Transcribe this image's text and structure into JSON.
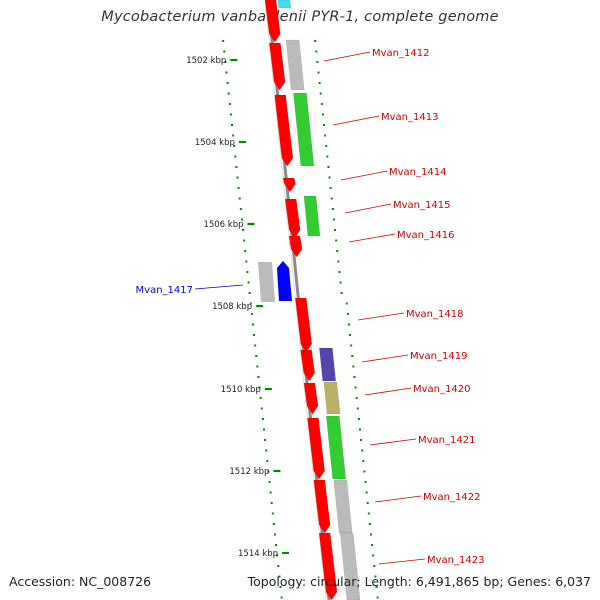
{
  "title": "Mycobacterium vanbaalenii PYR-1, complete genome",
  "accession": "Accession: NC_008726",
  "summary": "Topology: circular; Length: 6,491,865 bp; Genes: 6,037",
  "scale_labels": [
    "1502 kbp",
    "1504 kbp",
    "1506 kbp",
    "1508 kbp",
    "1510 kbp",
    "1512 kbp",
    "1514 kbp"
  ],
  "genes": [
    {
      "label": "Mvan_1412",
      "color": "#cc0000"
    },
    {
      "label": "Mvan_1413",
      "color": "#cc0000"
    },
    {
      "label": "Mvan_1414",
      "color": "#cc0000"
    },
    {
      "label": "Mvan_1415",
      "color": "#cc0000"
    },
    {
      "label": "Mvan_1416",
      "color": "#cc0000"
    },
    {
      "label": "Mvan_1417",
      "color": "#0000cc"
    },
    {
      "label": "Mvan_1418",
      "color": "#cc0000"
    },
    {
      "label": "Mvan_1419",
      "color": "#cc0000"
    },
    {
      "label": "Mvan_1420",
      "color": "#cc0000"
    },
    {
      "label": "Mvan_1421",
      "color": "#cc0000"
    },
    {
      "label": "Mvan_1422",
      "color": "#cc0000"
    },
    {
      "label": "Mvan_1423",
      "color": "#cc0000"
    }
  ],
  "colors": {
    "forward_strand": "#ff0000",
    "reverse_strand": "#0000ff",
    "cog_green": "#33cc33",
    "cog_gray": "#bbbbbb",
    "cog_purple": "#5544aa",
    "cog_olive": "#bbb066",
    "cog_cyan": "#44ddee",
    "backbone": "#999999",
    "gc_dots": "#008800"
  }
}
